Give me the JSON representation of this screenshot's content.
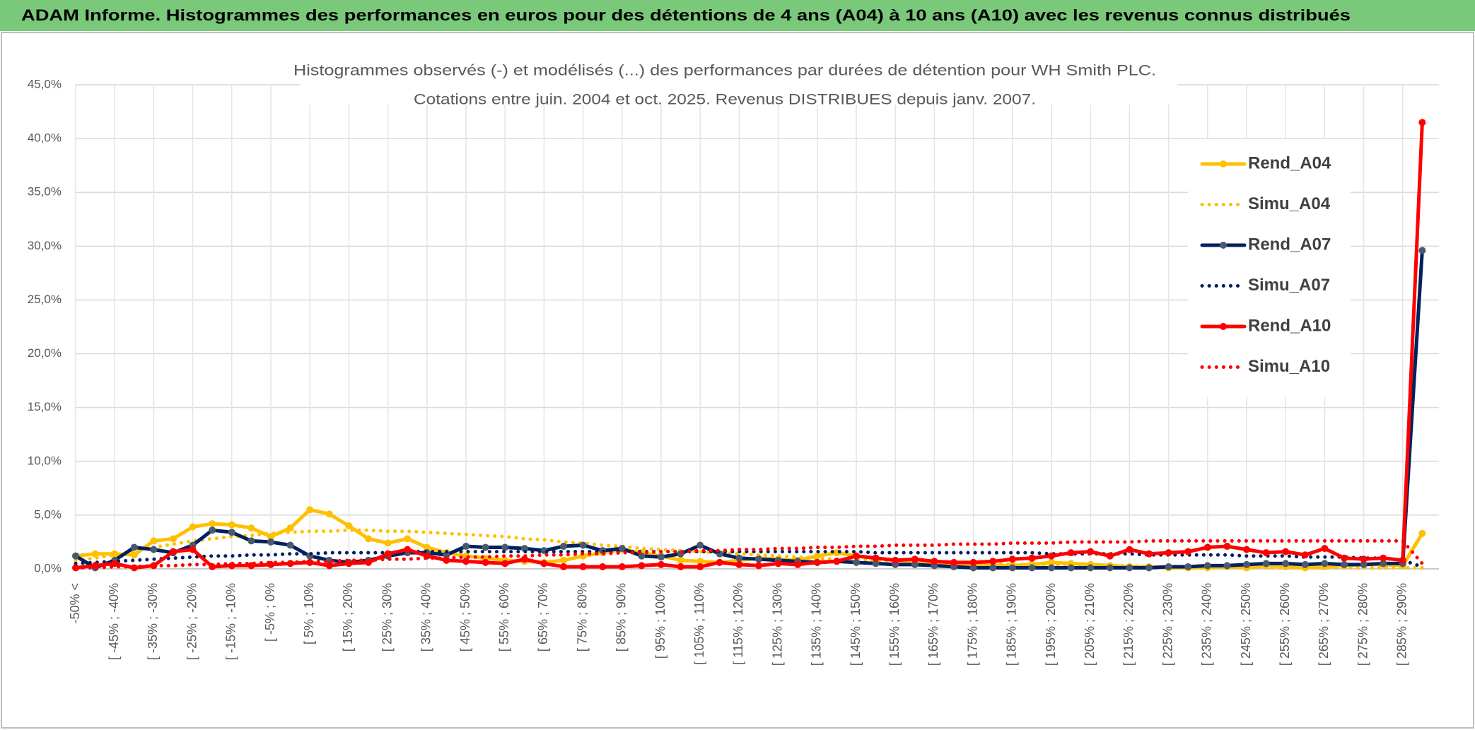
{
  "header": {
    "title": "ADAM Informe. Histogrammes des performances en euros pour des détentions de 4 ans (A04) à 10 ans (A10) avec les revenus connus distribués"
  },
  "chart_data": {
    "type": "line",
    "title": [
      "Histogrammes observés (-) et modélisés (...) des performances par durées de détention pour WH Smith PLC.",
      "Cotations entre juin. 2004 et oct. 2025. Revenus DISTRIBUES depuis janv. 2007."
    ],
    "categories": [
      "-50% <",
      null,
      "[ -45% ; -40%",
      null,
      "[ -35% ; -30%",
      null,
      "[ -25% ; -20%",
      null,
      "[ -15% ; -10%",
      null,
      "[ -5% ; 0%",
      null,
      "[ 5% ; 10%",
      null,
      "[ 15% ; 20%",
      null,
      "[ 25% ; 30%",
      null,
      "[ 35% ; 40%",
      null,
      "[ 45% ; 50%",
      null,
      "[ 55% ; 60%",
      null,
      "[ 65% ; 70%",
      null,
      "[ 75% ; 80%",
      null,
      "[ 85% ; 90%",
      null,
      "[ 95% ; 100%",
      null,
      "[ 105% ; 110%",
      null,
      "[ 115% ; 120%",
      null,
      "[ 125% ; 130%",
      null,
      "[ 135% ; 140%",
      null,
      "[ 145% ; 150%",
      null,
      "[ 155% ; 160%",
      null,
      "[ 165% ; 170%",
      null,
      "[ 175% ; 180%",
      null,
      "[ 185% ; 190%",
      null,
      "[ 195% ; 200%",
      null,
      "[ 205% ; 210%",
      null,
      "[ 215% ; 220%",
      null,
      "[ 225% ; 230%",
      null,
      "[ 235% ; 240%",
      null,
      "[ 245% ; 250%",
      null,
      "[ 255% ; 260%",
      null,
      "[ 265% ; 270%",
      null,
      "[ 275% ; 280%",
      null,
      "[ 285% ; 290%",
      null
    ],
    "series": [
      {
        "name": "Rend_A04",
        "color": "#ffc000",
        "style": "solid",
        "marker": true,
        "values": [
          1.2,
          1.4,
          1.4,
          1.3,
          2.6,
          2.8,
          3.9,
          4.2,
          4.1,
          3.8,
          3.0,
          3.8,
          5.5,
          5.1,
          4.0,
          2.8,
          2.4,
          2.8,
          2.0,
          1.5,
          1.2,
          1.0,
          0.8,
          0.7,
          0.6,
          0.8,
          1.2,
          1.5,
          1.8,
          1.5,
          1.2,
          0.8,
          0.7,
          0.6,
          0.8,
          1.0,
          0.9,
          0.8,
          1.2,
          1.5,
          1.2,
          1.0,
          0.8,
          0.6,
          0.5,
          0.5,
          0.4,
          0.3,
          0.3,
          0.4,
          0.6,
          0.5,
          0.4,
          0.3,
          0.2,
          0.2,
          0.1,
          0.1,
          0.1,
          0.2,
          0.1,
          0.3,
          0.2,
          0.1,
          0.2,
          0.3,
          0.4,
          0.4,
          0.3,
          3.3
        ]
      },
      {
        "name": "Simu_A04",
        "color": "#ffc000",
        "style": "dotted",
        "marker": false,
        "values": [
          0.8,
          1.0,
          1.3,
          1.6,
          2.0,
          2.3,
          2.6,
          2.8,
          3.0,
          3.1,
          3.3,
          3.4,
          3.5,
          3.5,
          3.6,
          3.6,
          3.5,
          3.5,
          3.4,
          3.3,
          3.2,
          3.1,
          3.0,
          2.8,
          2.7,
          2.5,
          2.4,
          2.2,
          2.1,
          1.9,
          1.8,
          1.7,
          1.6,
          1.5,
          1.4,
          1.3,
          1.2,
          1.1,
          1.0,
          0.9,
          0.9,
          0.8,
          0.7,
          0.7,
          0.6,
          0.6,
          0.5,
          0.5,
          0.4,
          0.4,
          0.4,
          0.3,
          0.3,
          0.3,
          0.3,
          0.2,
          0.2,
          0.2,
          0.2,
          0.2,
          0.2,
          0.1,
          0.1,
          0.1,
          0.1,
          0.1,
          0.1,
          0.1,
          0.1,
          0.1
        ]
      },
      {
        "name": "Rend_A07",
        "color": "#002060",
        "style": "solid",
        "marker": true,
        "values": [
          1.2,
          0.1,
          0.8,
          2.0,
          1.8,
          1.5,
          2.2,
          3.6,
          3.4,
          2.6,
          2.5,
          2.2,
          1.2,
          0.8,
          0.6,
          0.8,
          1.2,
          1.5,
          1.5,
          1.3,
          2.1,
          2.0,
          2.0,
          1.9,
          1.7,
          2.1,
          2.2,
          1.7,
          1.9,
          1.2,
          1.1,
          1.4,
          2.2,
          1.4,
          1.0,
          0.9,
          0.8,
          0.7,
          0.6,
          0.7,
          0.6,
          0.5,
          0.4,
          0.4,
          0.3,
          0.2,
          0.1,
          0.1,
          0.1,
          0.1,
          0.1,
          0.1,
          0.1,
          0.1,
          0.1,
          0.1,
          0.2,
          0.2,
          0.3,
          0.3,
          0.4,
          0.5,
          0.5,
          0.4,
          0.5,
          0.4,
          0.4,
          0.5,
          0.5,
          29.6
        ]
      },
      {
        "name": "Simu_A07",
        "color": "#002060",
        "style": "dotted",
        "marker": false,
        "values": [
          0.5,
          0.6,
          0.7,
          0.8,
          0.9,
          1.0,
          1.1,
          1.2,
          1.2,
          1.3,
          1.3,
          1.4,
          1.4,
          1.5,
          1.5,
          1.5,
          1.5,
          1.6,
          1.6,
          1.6,
          1.6,
          1.6,
          1.6,
          1.6,
          1.6,
          1.6,
          1.6,
          1.6,
          1.6,
          1.6,
          1.6,
          1.6,
          1.6,
          1.6,
          1.6,
          1.6,
          1.6,
          1.6,
          1.6,
          1.6,
          1.6,
          1.5,
          1.5,
          1.5,
          1.5,
          1.5,
          1.5,
          1.5,
          1.5,
          1.5,
          1.4,
          1.4,
          1.4,
          1.4,
          1.4,
          1.3,
          1.3,
          1.3,
          1.3,
          1.3,
          1.2,
          1.2,
          1.2,
          1.1,
          1.1,
          1.1,
          1.0,
          1.0,
          0.8,
          0.2
        ]
      },
      {
        "name": "Rend_A10",
        "color": "#ff0000",
        "style": "solid",
        "marker": true,
        "values": [
          0.1,
          0.3,
          0.5,
          0.1,
          0.3,
          1.6,
          1.8,
          0.2,
          0.3,
          0.3,
          0.4,
          0.5,
          0.6,
          0.3,
          0.5,
          0.6,
          1.4,
          1.8,
          1.2,
          0.8,
          0.7,
          0.6,
          0.5,
          0.9,
          0.5,
          0.2,
          0.2,
          0.2,
          0.2,
          0.3,
          0.4,
          0.2,
          0.2,
          0.6,
          0.4,
          0.3,
          0.5,
          0.4,
          0.6,
          0.7,
          1.2,
          1.0,
          0.8,
          0.9,
          0.7,
          0.6,
          0.6,
          0.7,
          0.9,
          1.0,
          1.2,
          1.5,
          1.6,
          1.2,
          1.8,
          1.4,
          1.5,
          1.6,
          2.0,
          2.1,
          1.8,
          1.5,
          1.6,
          1.3,
          1.9,
          1.0,
          0.9,
          1.0,
          0.8,
          41.5
        ]
      },
      {
        "name": "Simu_A10",
        "color": "#ff0000",
        "style": "dotted",
        "marker": false,
        "values": [
          0.1,
          0.1,
          0.2,
          0.2,
          0.3,
          0.3,
          0.4,
          0.4,
          0.5,
          0.5,
          0.6,
          0.6,
          0.7,
          0.7,
          0.8,
          0.8,
          0.9,
          0.9,
          1.0,
          1.0,
          1.1,
          1.1,
          1.2,
          1.2,
          1.3,
          1.3,
          1.4,
          1.4,
          1.5,
          1.5,
          1.6,
          1.6,
          1.7,
          1.7,
          1.8,
          1.8,
          1.9,
          1.9,
          2.0,
          2.0,
          2.1,
          2.1,
          2.2,
          2.2,
          2.2,
          2.3,
          2.3,
          2.3,
          2.4,
          2.4,
          2.4,
          2.5,
          2.5,
          2.5,
          2.5,
          2.6,
          2.6,
          2.6,
          2.6,
          2.6,
          2.6,
          2.6,
          2.6,
          2.6,
          2.6,
          2.6,
          2.6,
          2.6,
          2.6,
          0.5
        ]
      }
    ],
    "ylim": [
      0,
      45
    ],
    "yticks": [
      {
        "value": 0,
        "label": "0,0%"
      },
      {
        "value": 5,
        "label": "5,0%"
      },
      {
        "value": 10,
        "label": "10,0%"
      },
      {
        "value": 15,
        "label": "15,0%"
      },
      {
        "value": 20,
        "label": "20,0%"
      },
      {
        "value": 25,
        "label": "25,0%"
      },
      {
        "value": 30,
        "label": "30,0%"
      },
      {
        "value": 35,
        "label": "35,0%"
      },
      {
        "value": 40,
        "label": "40,0%"
      },
      {
        "value": 45,
        "label": "45,0%"
      }
    ],
    "grid": true,
    "legend": "right"
  }
}
